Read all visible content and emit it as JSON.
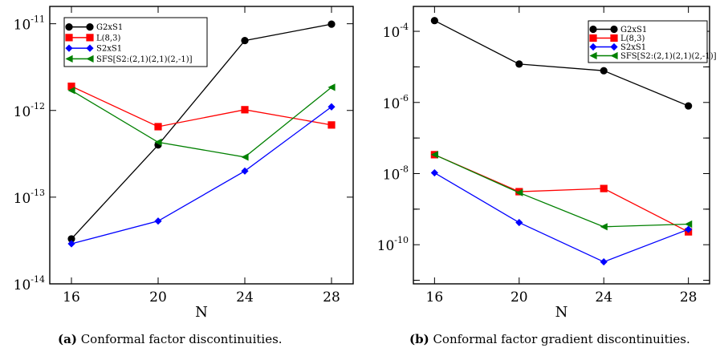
{
  "chart_data": [
    {
      "type": "line",
      "yscale": "log",
      "xlabel": "N",
      "ylabel": "",
      "caption_tag": "(a)",
      "caption_text": "Conformal factor discontinuities.",
      "x": [
        16,
        20,
        24,
        28
      ],
      "xticks": [
        "16",
        "20",
        "24",
        "28"
      ],
      "xlim": [
        15,
        29
      ],
      "ylim_exp": [
        -14,
        -10.8
      ],
      "yticks": [
        {
          "base": "10",
          "exp": "-14",
          "value_exp": -14
        },
        {
          "base": "10",
          "exp": "-13",
          "value_exp": -13
        },
        {
          "base": "10",
          "exp": "-12",
          "value_exp": -12
        },
        {
          "base": "10",
          "exp": "-11",
          "value_exp": -11
        }
      ],
      "legend_position": "top-left",
      "series": [
        {
          "name": "G2xS1",
          "color": "#000000",
          "marker": "circle",
          "values": [
            3.3e-14,
            4e-13,
            6.4e-12,
            9.9e-12
          ]
        },
        {
          "name": "L(8,3)",
          "color": "#ff0000",
          "marker": "square",
          "values": [
            1.9e-12,
            6.5e-13,
            1.02e-12,
            6.8e-13
          ]
        },
        {
          "name": "S2xS1",
          "color": "#0000ff",
          "marker": "diamond",
          "values": [
            2.9e-14,
            5.3e-14,
            2e-13,
            1.1e-12
          ]
        },
        {
          "name": "SFS[S2:(2,1)(2,1)(2,-1)]",
          "color": "#008000",
          "marker": "triangle-left",
          "values": [
            1.7e-12,
            4.3e-13,
            2.9e-13,
            1.85e-12
          ]
        }
      ]
    },
    {
      "type": "line",
      "yscale": "log",
      "xlabel": "N",
      "ylabel": "",
      "caption_tag": "(b)",
      "caption_text": "Conformal factor gradient discontinuities.",
      "x": [
        16,
        20,
        24,
        28
      ],
      "xticks": [
        "16",
        "20",
        "24",
        "28"
      ],
      "xlim": [
        15,
        29
      ],
      "ylim_exp": [
        -11.1,
        -3.3
      ],
      "yticks": [
        {
          "base": "10",
          "exp": "-10",
          "value_exp": -10
        },
        {
          "base": "10",
          "exp": "-8",
          "value_exp": -8
        },
        {
          "base": "10",
          "exp": "-6",
          "value_exp": -6
        },
        {
          "base": "10",
          "exp": "-4",
          "value_exp": -4
        }
      ],
      "legend_position": "top-right",
      "series": [
        {
          "name": "G2xS1",
          "color": "#000000",
          "marker": "circle",
          "values": [
            0.0002,
            1.2e-05,
            7.8e-06,
            8e-07
          ]
        },
        {
          "name": "L(8,3)",
          "color": "#ff0000",
          "marker": "square",
          "values": [
            3.4e-08,
            3.1e-09,
            3.8e-09,
            2.3e-10
          ]
        },
        {
          "name": "S2xS1",
          "color": "#0000ff",
          "marker": "diamond",
          "values": [
            1.05e-08,
            4.2e-10,
            3.3e-11,
            2.7e-10
          ]
        },
        {
          "name": "SFS[S2:(2,1)(2,1)(2,-1)]",
          "color": "#008000",
          "marker": "triangle-left",
          "values": [
            3.4e-08,
            2.9e-09,
            3.2e-10,
            3.8e-10
          ]
        }
      ]
    }
  ]
}
